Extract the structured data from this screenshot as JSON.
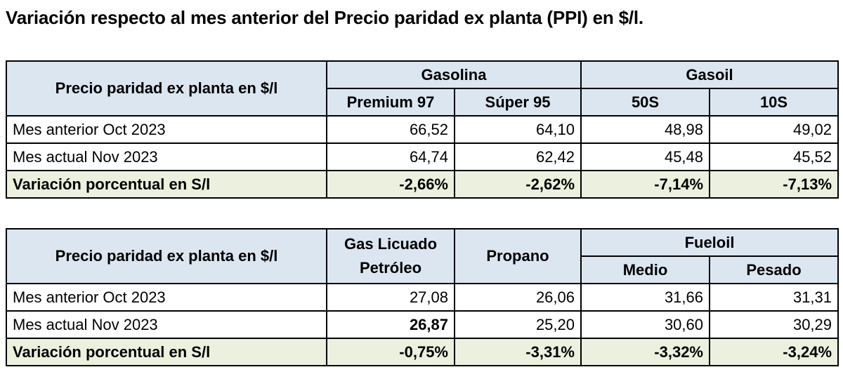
{
  "title": "Variación respecto al mes anterior del Precio paridad ex planta (PPI) en $/l.",
  "table1": {
    "corner_label": "Precio paridad ex planta en $/l",
    "groups": [
      "Gasolina",
      "Gasoil"
    ],
    "columns": [
      "Premium 97",
      "Súper 95",
      "50S",
      "10S"
    ],
    "rows": [
      {
        "label": "Mes anterior Oct 2023",
        "values": [
          "66,52",
          "64,10",
          "48,98",
          "49,02"
        ]
      },
      {
        "label": "Mes actual Nov 2023",
        "values": [
          "64,74",
          "62,42",
          "45,48",
          "45,52"
        ]
      },
      {
        "label": "Variación porcentual en S/l",
        "values": [
          "-2,66%",
          "-2,62%",
          "-7,14%",
          "-7,13%"
        ]
      }
    ]
  },
  "table2": {
    "corner_label": "Precio paridad ex planta en $/l",
    "col1_header": "Gas Licuado Petróleo",
    "col2_header": "Propano",
    "group": "Fueloil",
    "columns": [
      "Medio",
      "Pesado"
    ],
    "rows": [
      {
        "label": "Mes anterior Oct 2023",
        "values": [
          "27,08",
          "26,06",
          "31,66",
          "31,31"
        ]
      },
      {
        "label": "Mes actual Nov 2023",
        "values": [
          "26,87",
          "25,20",
          "30,60",
          "30,29"
        ]
      },
      {
        "label": "Variación porcentual en S/l",
        "values": [
          "-0,75%",
          "-3,31%",
          "-3,32%",
          "-3,24%"
        ]
      }
    ]
  }
}
